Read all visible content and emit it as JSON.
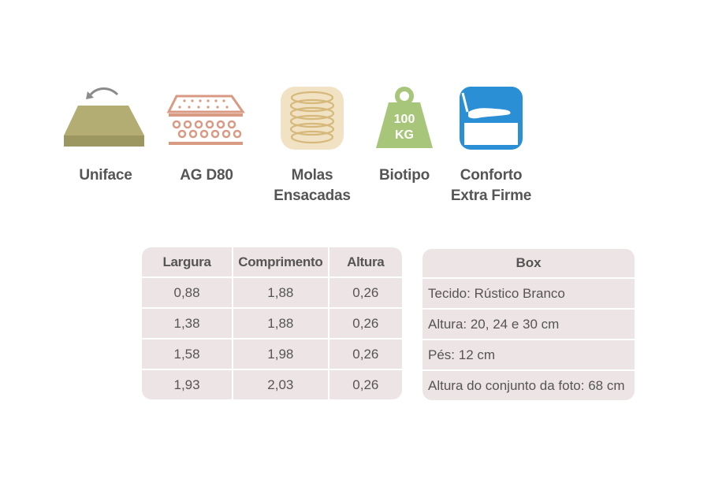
{
  "features": [
    {
      "icon": "mattress-flip-icon",
      "label": "Uniface"
    },
    {
      "icon": "foam-density-icon",
      "label": "AG D80"
    },
    {
      "icon": "pocket-springs-icon",
      "label": "Molas\nEnsacadas"
    },
    {
      "icon": "weight-icon",
      "label": "Biotipo",
      "weight_text": "100\nKG"
    },
    {
      "icon": "hand-press-icon",
      "label": "Conforto\nExtra Firme"
    }
  ],
  "dimensions": {
    "headers": [
      "Largura",
      "Comprimento",
      "Altura"
    ],
    "rows": [
      [
        "0,88",
        "1,88",
        "0,26"
      ],
      [
        "1,38",
        "1,88",
        "0,26"
      ],
      [
        "1,58",
        "1,98",
        "0,26"
      ],
      [
        "1,93",
        "2,03",
        "0,26"
      ]
    ]
  },
  "box": {
    "title": "Box",
    "rows": [
      "Tecido: Rústico Branco",
      "Altura: 20, 24 e 30 cm",
      "Pés: 12 cm",
      "Altura do conjunto da foto: 68 cm"
    ]
  },
  "colors": {
    "olive": "#b3ad74",
    "salmon": "#d99a84",
    "cream": "#f1e2c4",
    "green": "#a8c67a",
    "blue": "#2b8fd6",
    "table_bg": "#ede4e5"
  }
}
